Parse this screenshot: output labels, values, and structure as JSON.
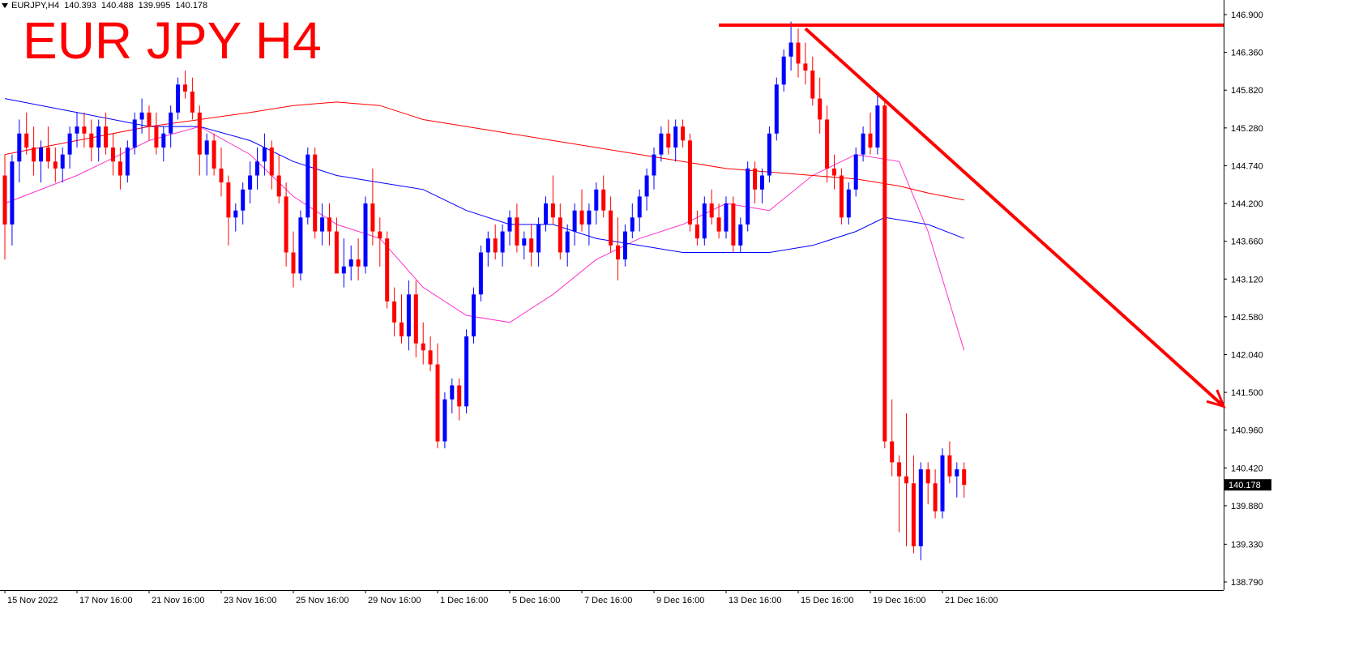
{
  "header": {
    "symbol": "EURJPY,H4",
    "open": "140.393",
    "high": "140.488",
    "low": "139.995",
    "close": "140.178"
  },
  "overlay_title": "EUR JPY H4",
  "colors": {
    "bull": "#0000ff",
    "bear": "#ff0000",
    "ma_fast": "#ff33cc",
    "ma_mid": "#0000ff",
    "ma_slow": "#ff0000",
    "annotation": "#ff0000",
    "price_tag_bg": "#000000"
  },
  "chart_data": {
    "type": "candlestick",
    "symbol": "EURJPY",
    "timeframe": "H4",
    "title": "EUR JPY H4",
    "ylim": [
      138.5,
      147.1
    ],
    "y_ticks": [
      "146.900",
      "146.360",
      "145.820",
      "145.280",
      "144.740",
      "144.200",
      "143.660",
      "143.120",
      "142.580",
      "142.040",
      "141.500",
      "140.960",
      "140.420",
      "139.880",
      "139.330",
      "138.790"
    ],
    "x_ticks": [
      {
        "label": "15 Nov 2022",
        "bar": 0
      },
      {
        "label": "17 Nov 16:00",
        "bar": 10
      },
      {
        "label": "21 Nov 16:00",
        "bar": 20
      },
      {
        "label": "23 Nov 16:00",
        "bar": 30
      },
      {
        "label": "25 Nov 16:00",
        "bar": 40
      },
      {
        "label": "29 Nov 16:00",
        "bar": 50
      },
      {
        "label": "1 Dec 16:00",
        "bar": 60
      },
      {
        "label": "5 Dec 16:00",
        "bar": 70
      },
      {
        "label": "7 Dec 16:00",
        "bar": 80
      },
      {
        "label": "9 Dec 16:00",
        "bar": 90
      },
      {
        "label": "13 Dec 16:00",
        "bar": 100
      },
      {
        "label": "15 Dec 16:00",
        "bar": 110
      },
      {
        "label": "19 Dec 16:00",
        "bar": 120
      },
      {
        "label": "21 Dec 16:00",
        "bar": 130
      }
    ],
    "current_price": "140.178",
    "candles": [
      [
        144.6,
        144.9,
        143.4,
        143.9
      ],
      [
        143.9,
        144.9,
        143.6,
        144.8
      ],
      [
        144.8,
        145.4,
        144.5,
        145.2
      ],
      [
        145.2,
        145.5,
        144.9,
        145.0
      ],
      [
        145.0,
        145.3,
        144.6,
        144.8
      ],
      [
        144.8,
        145.1,
        144.5,
        145.0
      ],
      [
        145.0,
        145.3,
        144.7,
        144.8
      ],
      [
        144.8,
        145.0,
        144.5,
        144.7
      ],
      [
        144.7,
        145.0,
        144.5,
        144.9
      ],
      [
        144.9,
        145.3,
        144.7,
        145.2
      ],
      [
        145.2,
        145.5,
        145.0,
        145.3
      ],
      [
        145.3,
        145.5,
        145.0,
        145.2
      ],
      [
        145.2,
        145.4,
        144.8,
        145.0
      ],
      [
        145.0,
        145.4,
        144.8,
        145.3
      ],
      [
        145.3,
        145.5,
        144.9,
        145.0
      ],
      [
        145.0,
        145.2,
        144.6,
        144.8
      ],
      [
        144.8,
        145.0,
        144.4,
        144.6
      ],
      [
        144.6,
        145.1,
        144.5,
        145.0
      ],
      [
        145.0,
        145.5,
        144.9,
        145.4
      ],
      [
        145.4,
        145.7,
        145.2,
        145.5
      ],
      [
        145.5,
        145.6,
        145.1,
        145.3
      ],
      [
        145.3,
        145.5,
        144.9,
        145.0
      ],
      [
        145.0,
        145.3,
        144.8,
        145.2
      ],
      [
        145.2,
        145.6,
        145.0,
        145.5
      ],
      [
        145.5,
        146.0,
        145.4,
        145.9
      ],
      [
        145.9,
        146.1,
        145.7,
        145.8
      ],
      [
        145.8,
        146.0,
        145.4,
        145.5
      ],
      [
        145.5,
        145.6,
        144.6,
        144.9
      ],
      [
        144.9,
        145.2,
        144.6,
        145.1
      ],
      [
        145.1,
        145.2,
        144.6,
        144.7
      ],
      [
        144.7,
        145.0,
        144.3,
        144.5
      ],
      [
        144.5,
        144.6,
        143.6,
        144.0
      ],
      [
        144.0,
        144.2,
        143.8,
        144.1
      ],
      [
        144.1,
        144.5,
        143.9,
        144.4
      ],
      [
        144.4,
        144.8,
        144.2,
        144.6
      ],
      [
        144.6,
        145.0,
        144.4,
        144.8
      ],
      [
        144.8,
        145.2,
        144.6,
        145.0
      ],
      [
        145.0,
        145.1,
        144.4,
        144.6
      ],
      [
        144.6,
        144.9,
        144.2,
        144.3
      ],
      [
        144.3,
        144.5,
        143.3,
        143.5
      ],
      [
        143.5,
        143.8,
        143.0,
        143.2
      ],
      [
        143.2,
        144.1,
        143.1,
        144.0
      ],
      [
        144.0,
        145.0,
        143.9,
        144.9
      ],
      [
        144.9,
        145.0,
        143.7,
        143.8
      ],
      [
        143.8,
        144.2,
        143.6,
        144.0
      ],
      [
        144.0,
        144.2,
        143.6,
        143.8
      ],
      [
        143.8,
        144.0,
        143.2,
        143.2
      ],
      [
        143.2,
        143.7,
        143.0,
        143.3
      ],
      [
        143.3,
        143.6,
        143.1,
        143.4
      ],
      [
        143.4,
        143.7,
        143.1,
        143.3
      ],
      [
        143.3,
        144.3,
        143.2,
        144.2
      ],
      [
        144.2,
        144.7,
        143.6,
        143.8
      ],
      [
        143.8,
        144.0,
        143.3,
        143.7
      ],
      [
        143.7,
        143.8,
        142.7,
        142.8
      ],
      [
        142.8,
        143.0,
        142.3,
        142.5
      ],
      [
        142.5,
        142.9,
        142.2,
        142.3
      ],
      [
        142.3,
        143.1,
        142.1,
        142.9
      ],
      [
        142.9,
        143.1,
        142.0,
        142.2
      ],
      [
        142.2,
        142.5,
        141.9,
        142.1
      ],
      [
        142.1,
        142.3,
        141.8,
        141.9
      ],
      [
        141.9,
        142.2,
        140.7,
        140.8
      ],
      [
        140.8,
        141.5,
        140.7,
        141.4
      ],
      [
        141.4,
        141.7,
        141.2,
        141.6
      ],
      [
        141.6,
        141.7,
        141.1,
        141.3
      ],
      [
        141.3,
        142.4,
        141.2,
        142.3
      ],
      [
        142.3,
        143.0,
        142.2,
        142.9
      ],
      [
        142.9,
        143.6,
        142.8,
        143.5
      ],
      [
        143.5,
        143.8,
        143.3,
        143.7
      ],
      [
        143.7,
        143.9,
        143.4,
        143.5
      ],
      [
        143.5,
        143.9,
        143.3,
        143.8
      ],
      [
        143.8,
        144.1,
        143.6,
        144.0
      ],
      [
        144.0,
        144.2,
        143.5,
        143.6
      ],
      [
        143.6,
        143.8,
        143.4,
        143.7
      ],
      [
        143.7,
        143.9,
        143.3,
        143.5
      ],
      [
        143.5,
        144.0,
        143.3,
        143.9
      ],
      [
        143.9,
        144.3,
        143.8,
        144.2
      ],
      [
        144.2,
        144.6,
        143.9,
        144.0
      ],
      [
        144.0,
        144.2,
        143.4,
        143.5
      ],
      [
        143.5,
        143.9,
        143.3,
        143.8
      ],
      [
        143.8,
        144.2,
        143.6,
        144.1
      ],
      [
        144.1,
        144.4,
        143.8,
        143.9
      ],
      [
        143.9,
        144.2,
        143.6,
        144.1
      ],
      [
        144.1,
        144.5,
        143.9,
        144.4
      ],
      [
        144.4,
        144.6,
        144.0,
        144.1
      ],
      [
        144.1,
        144.3,
        143.5,
        143.6
      ],
      [
        143.6,
        144.0,
        143.1,
        143.4
      ],
      [
        143.4,
        143.9,
        143.3,
        143.8
      ],
      [
        143.8,
        144.2,
        143.7,
        144.0
      ],
      [
        144.0,
        144.4,
        143.8,
        144.3
      ],
      [
        144.3,
        144.7,
        144.1,
        144.6
      ],
      [
        144.6,
        145.0,
        144.4,
        144.9
      ],
      [
        144.9,
        145.3,
        144.8,
        145.2
      ],
      [
        145.2,
        145.4,
        144.9,
        145.0
      ],
      [
        145.0,
        145.4,
        144.8,
        145.3
      ],
      [
        145.3,
        145.4,
        145.0,
        145.1
      ],
      [
        145.1,
        145.2,
        143.8,
        143.9
      ],
      [
        143.9,
        144.1,
        143.6,
        143.7
      ],
      [
        143.7,
        144.3,
        143.6,
        144.2
      ],
      [
        144.2,
        144.4,
        143.9,
        144.0
      ],
      [
        144.0,
        144.2,
        143.7,
        143.8
      ],
      [
        143.8,
        144.3,
        143.7,
        144.2
      ],
      [
        144.2,
        144.3,
        143.5,
        143.6
      ],
      [
        143.6,
        144.0,
        143.5,
        143.9
      ],
      [
        143.9,
        144.8,
        143.8,
        144.7
      ],
      [
        144.7,
        144.8,
        144.2,
        144.4
      ],
      [
        144.4,
        144.7,
        144.2,
        144.6
      ],
      [
        144.6,
        145.3,
        144.5,
        145.2
      ],
      [
        145.2,
        146.0,
        145.1,
        145.9
      ],
      [
        145.9,
        146.4,
        145.8,
        146.3
      ],
      [
        146.3,
        146.8,
        146.1,
        146.5
      ],
      [
        146.5,
        146.7,
        146.0,
        146.2
      ],
      [
        146.2,
        146.5,
        145.9,
        146.1
      ],
      [
        146.1,
        146.3,
        145.6,
        145.7
      ],
      [
        145.7,
        146.0,
        145.2,
        145.4
      ],
      [
        145.4,
        145.6,
        144.5,
        144.7
      ],
      [
        144.7,
        144.9,
        144.4,
        144.6
      ],
      [
        144.6,
        144.7,
        143.9,
        144.0
      ],
      [
        144.0,
        144.5,
        143.9,
        144.4
      ],
      [
        144.4,
        145.0,
        144.3,
        144.9
      ],
      [
        144.9,
        145.3,
        144.8,
        145.2
      ],
      [
        145.2,
        145.5,
        144.9,
        145.0
      ],
      [
        145.0,
        145.8,
        144.9,
        145.6
      ],
      [
        145.6,
        145.7,
        140.7,
        140.8
      ],
      [
        140.8,
        141.4,
        140.3,
        140.5
      ],
      [
        140.5,
        140.6,
        139.5,
        140.3
      ],
      [
        140.3,
        141.2,
        139.3,
        140.2
      ],
      [
        140.2,
        140.6,
        139.2,
        139.3
      ],
      [
        139.3,
        140.5,
        139.1,
        140.4
      ],
      [
        140.4,
        140.5,
        139.9,
        140.2
      ],
      [
        140.2,
        140.4,
        139.7,
        139.8
      ],
      [
        139.8,
        140.7,
        139.7,
        140.6
      ],
      [
        140.6,
        140.8,
        140.2,
        140.3
      ],
      [
        140.3,
        140.5,
        140.0,
        140.4
      ],
      [
        140.4,
        140.5,
        139.995,
        140.178
      ]
    ],
    "moving_averages": [
      {
        "color": "#ff33cc",
        "points": [
          [
            0,
            144.2
          ],
          [
            10,
            144.6
          ],
          [
            20,
            145.1
          ],
          [
            27,
            145.3
          ],
          [
            34,
            144.9
          ],
          [
            40,
            144.3
          ],
          [
            46,
            143.9
          ],
          [
            52,
            143.7
          ],
          [
            58,
            143.0
          ],
          [
            64,
            142.6
          ],
          [
            70,
            142.5
          ],
          [
            76,
            142.9
          ],
          [
            82,
            143.4
          ],
          [
            88,
            143.7
          ],
          [
            94,
            143.9
          ],
          [
            100,
            144.2
          ],
          [
            106,
            144.1
          ],
          [
            112,
            144.6
          ],
          [
            118,
            144.9
          ],
          [
            124,
            144.8
          ],
          [
            128,
            143.8
          ],
          [
            133,
            142.1
          ]
        ]
      },
      {
        "color": "#0000ff",
        "points": [
          [
            0,
            145.7
          ],
          [
            10,
            145.5
          ],
          [
            20,
            145.3
          ],
          [
            27,
            145.3
          ],
          [
            34,
            145.1
          ],
          [
            40,
            144.8
          ],
          [
            46,
            144.6
          ],
          [
            52,
            144.5
          ],
          [
            58,
            144.4
          ],
          [
            64,
            144.1
          ],
          [
            70,
            143.9
          ],
          [
            76,
            143.9
          ],
          [
            82,
            143.7
          ],
          [
            88,
            143.6
          ],
          [
            94,
            143.5
          ],
          [
            100,
            143.5
          ],
          [
            106,
            143.5
          ],
          [
            112,
            143.6
          ],
          [
            118,
            143.8
          ],
          [
            122,
            144.0
          ],
          [
            128,
            143.9
          ],
          [
            133,
            143.7
          ]
        ]
      },
      {
        "color": "#ff0000",
        "points": [
          [
            0,
            144.9
          ],
          [
            10,
            145.1
          ],
          [
            20,
            145.3
          ],
          [
            27,
            145.4
          ],
          [
            34,
            145.5
          ],
          [
            40,
            145.6
          ],
          [
            46,
            145.65
          ],
          [
            52,
            145.6
          ],
          [
            58,
            145.4
          ],
          [
            64,
            145.3
          ],
          [
            70,
            145.2
          ],
          [
            76,
            145.1
          ],
          [
            82,
            145.0
          ],
          [
            88,
            144.9
          ],
          [
            94,
            144.8
          ],
          [
            100,
            144.7
          ],
          [
            106,
            144.65
          ],
          [
            112,
            144.6
          ],
          [
            118,
            144.55
          ],
          [
            124,
            144.45
          ],
          [
            128,
            144.35
          ],
          [
            133,
            144.25
          ]
        ]
      }
    ],
    "annotations": {
      "horizontal_line": {
        "price": 146.75,
        "from_bar": 99
      },
      "trendline": {
        "from": [
          111,
          146.7
        ],
        "to": [
          169,
          141.3
        ]
      }
    }
  }
}
